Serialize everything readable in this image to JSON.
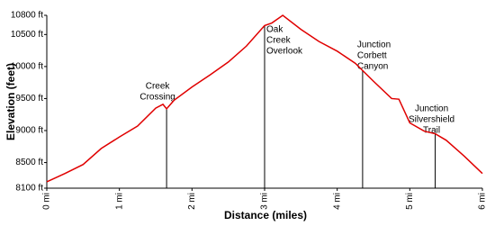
{
  "chart_data": {
    "type": "line",
    "xlabel": "Distance (miles)",
    "ylabel": "Elevation (feet)",
    "x": [
      0,
      0.25,
      0.5,
      0.75,
      1.0,
      1.25,
      1.5,
      1.6,
      1.65,
      1.75,
      2.0,
      2.25,
      2.5,
      2.75,
      3.0,
      3.1,
      3.25,
      3.5,
      3.75,
      4.0,
      4.25,
      4.5,
      4.75,
      4.85,
      5.0,
      5.2,
      5.35,
      5.5,
      5.75,
      6.0
    ],
    "series": [
      {
        "name": "Elevation",
        "color": "#e00000",
        "values": [
          8200,
          8330,
          8470,
          8720,
          8900,
          9070,
          9350,
          9410,
          9340,
          9470,
          9680,
          9870,
          10070,
          10320,
          10640,
          10680,
          10800,
          10580,
          10390,
          10240,
          10050,
          9770,
          9500,
          9490,
          9120,
          8990,
          8950,
          8850,
          8600,
          8330
        ]
      }
    ],
    "xlim": [
      0,
      6
    ],
    "ylim": [
      8100,
      10800
    ],
    "xticks": [
      {
        "value": 0,
        "label": "0 mi"
      },
      {
        "value": 1,
        "label": "1 mi"
      },
      {
        "value": 2,
        "label": "2 mi"
      },
      {
        "value": 3,
        "label": "3 mi"
      },
      {
        "value": 4,
        "label": "4 mi"
      },
      {
        "value": 5,
        "label": "5 mi"
      },
      {
        "value": 6,
        "label": "6 mi"
      }
    ],
    "yticks": [
      {
        "value": 8100,
        "label": "8100 ft"
      },
      {
        "value": 8500,
        "label": "8500 ft"
      },
      {
        "value": 9000,
        "label": "9000 ft"
      },
      {
        "value": 9500,
        "label": "9500 ft"
      },
      {
        "value": 10000,
        "label": "10000 ft"
      },
      {
        "value": 10500,
        "label": "10500 ft"
      },
      {
        "value": 10800,
        "label": "10800 ft"
      }
    ],
    "annotations": [
      {
        "lines": [
          "Creek",
          "Crossing"
        ],
        "x": 1.65
      },
      {
        "lines": [
          "Oak",
          "Creek",
          "Overlook"
        ],
        "x": 3.0
      },
      {
        "lines": [
          "Junction",
          "Corbett",
          "Canyon"
        ],
        "x": 4.35
      },
      {
        "lines": [
          "Junction",
          "Silvershield",
          "Trail"
        ],
        "x": 5.35
      }
    ]
  }
}
